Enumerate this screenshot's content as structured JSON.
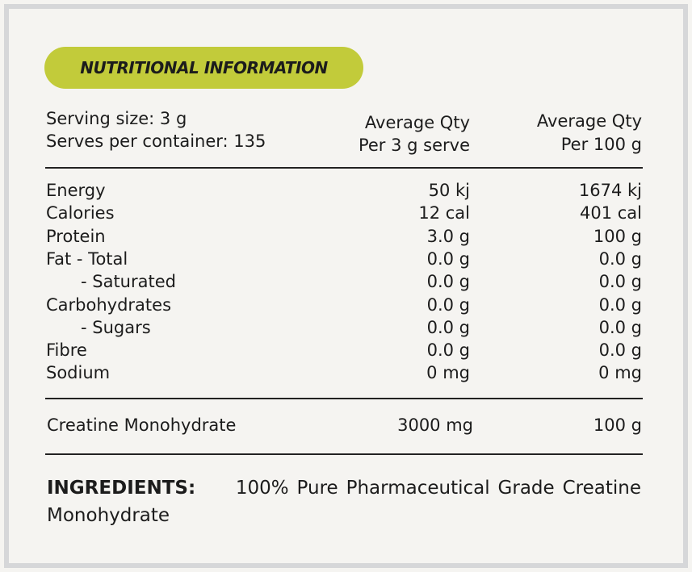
{
  "title": "NUTRITIONAL INFORMATION",
  "accent_color": "#c2cb3a",
  "serving": {
    "size": "Serving size:  3 g",
    "serves": "Serves per container: 135"
  },
  "headers": {
    "col1_line1": "Average Qty",
    "col1_line2": "Per 3 g serve",
    "col2_line1": "Average Qty",
    "col2_line2": "Per 100 g"
  },
  "rows": [
    {
      "label": "Energy",
      "per_serve": "50 kj",
      "per_100g": "1674 kj"
    },
    {
      "label": "Calories",
      "per_serve": "12 cal",
      "per_100g": "401 cal"
    },
    {
      "label": "Protein",
      "per_serve": "3.0 g",
      "per_100g": "100 g"
    },
    {
      "label": "Fat - Total",
      "per_serve": "0.0 g",
      "per_100g": "0.0 g"
    },
    {
      "label": "- Saturated",
      "per_serve": "0.0 g",
      "per_100g": "0.0 g"
    },
    {
      "label": "Carbohydrates",
      "per_serve": "0.0 g",
      "per_100g": "0.0 g"
    },
    {
      "label": "- Sugars",
      "per_serve": "0.0 g",
      "per_100g": "0.0 g"
    },
    {
      "label": "Fibre",
      "per_serve": "0.0 g",
      "per_100g": "0.0 g"
    },
    {
      "label": "Sodium",
      "per_serve": "0 mg",
      "per_100g": "0 mg"
    }
  ],
  "active": {
    "label": "Creatine Monohydrate",
    "per_serve": "3000 mg",
    "per_100g": "100 g"
  },
  "ingredients": {
    "label": "INGREDIENTS:",
    "text": "100% Pure Pharmaceutical Grade Creatine Monohydrate"
  }
}
